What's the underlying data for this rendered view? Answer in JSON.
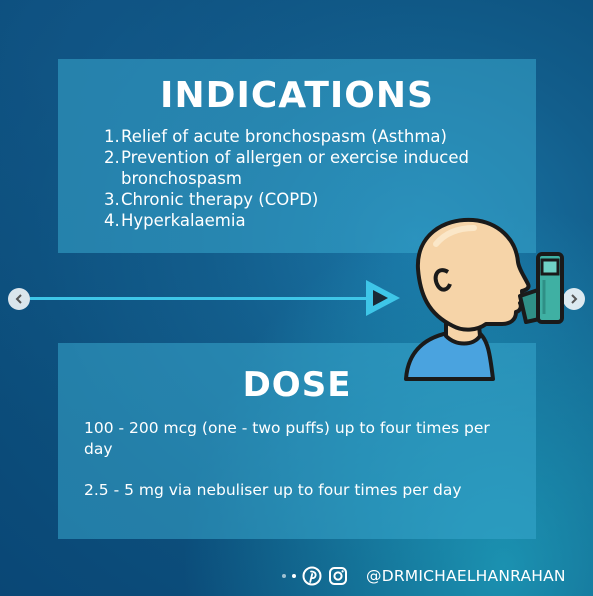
{
  "indications": {
    "title": "INDICATIONS",
    "items": [
      {
        "num": "1.",
        "text": "Relief of acute bronchospasm (Asthma)"
      },
      {
        "num": "2.",
        "text": "Prevention of allergen or exercise induced bronchospasm"
      },
      {
        "num": "3.",
        "text": "Chronic therapy (COPD)"
      },
      {
        "num": "4.",
        "text": "Hyperkalaemia"
      }
    ]
  },
  "dose": {
    "title": "DOSE",
    "line1": "100 - 200 mcg (one - two puffs) up to four times per day",
    "line2": "2.5 - 5 mg via nebuliser up to four times per day"
  },
  "footer": {
    "handle": "@DRMICHAELHANRAHAN"
  },
  "icons": {
    "prev": "chevron-left-icon",
    "next": "chevron-right-icon",
    "pinterest": "pinterest-icon",
    "instagram": "instagram-icon",
    "play": "play-arrow-icon",
    "illustration": "person-inhaler-icon"
  },
  "colors": {
    "accent": "#3ec6e8",
    "panel": "#38a8cd",
    "background": "#0c4f7c"
  }
}
